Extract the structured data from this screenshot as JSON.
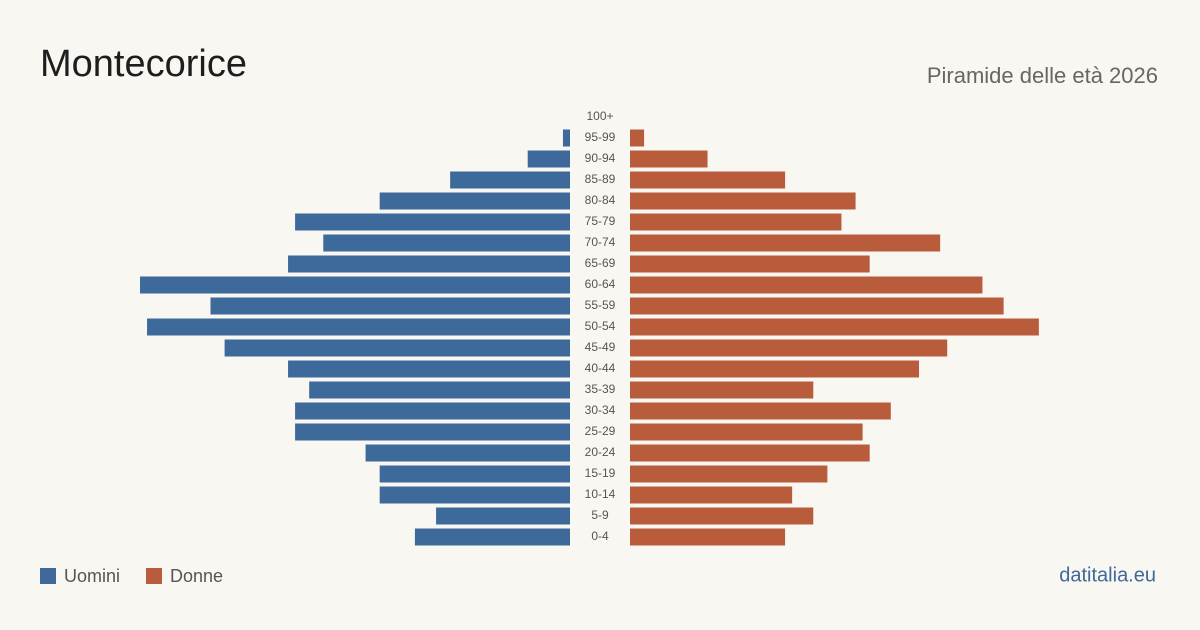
{
  "chart_data": {
    "type": "pyramid",
    "title": "Montecorice",
    "subtitle": "Piramide delle età 2026",
    "source": "datitalia.eu",
    "categories": [
      "0-4",
      "5-9",
      "10-14",
      "15-19",
      "20-24",
      "25-29",
      "30-34",
      "35-39",
      "40-44",
      "45-49",
      "50-54",
      "55-59",
      "60-64",
      "65-69",
      "70-74",
      "75-79",
      "80-84",
      "85-89",
      "90-94",
      "95-99",
      "100+"
    ],
    "series": [
      {
        "name": "Uomini",
        "color": "#3d6a9a",
        "values": [
          22,
          19,
          27,
          27,
          29,
          39,
          39,
          37,
          40,
          49,
          60,
          51,
          61,
          40,
          35,
          39,
          27,
          17,
          6,
          1,
          0
        ]
      },
      {
        "name": "Donne",
        "color": "#b85c3c",
        "values": [
          22,
          26,
          23,
          28,
          34,
          33,
          37,
          26,
          41,
          45,
          58,
          53,
          50,
          34,
          44,
          30,
          32,
          22,
          11,
          2,
          0
        ]
      }
    ],
    "xlim": [
      0,
      61
    ]
  }
}
